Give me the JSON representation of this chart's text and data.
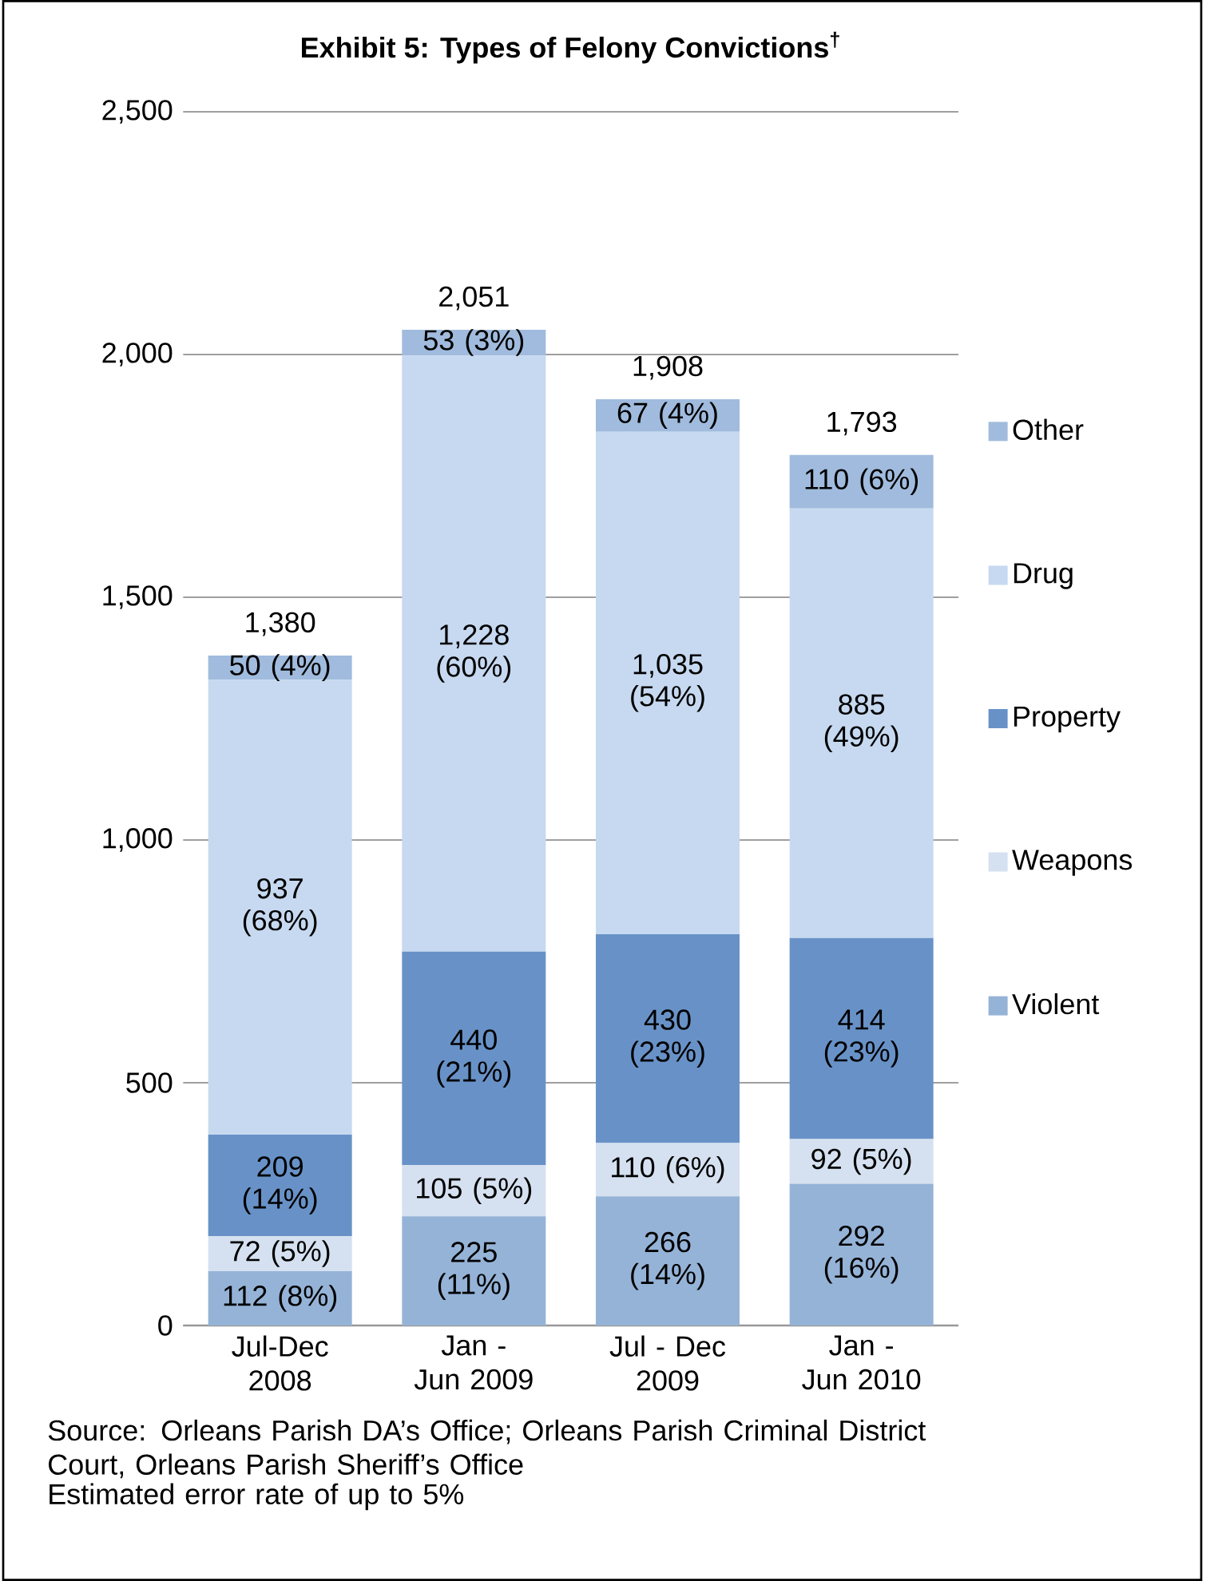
{
  "chart_data": {
    "type": "bar",
    "stacked": true,
    "title": "Exhibit 5: Types of Felony Convictions$^{†}$",
    "categories": [
      "Jul-Dec 2008",
      "Jan - Jun 2009",
      "Jul - Dec 2009",
      "Jan - Jun 2010"
    ],
    "series": [
      {
        "name": "Violent",
        "color": "#95b3d7",
        "values": [
          112,
          225,
          266,
          292
        ],
        "value_labels": [
          "112 (8%)",
          "225 (11%)",
          "266 (14%)",
          "292 (16%)"
        ]
      },
      {
        "name": "Weapons",
        "color": "#d5e1f0",
        "values": [
          72,
          105,
          110,
          92
        ],
        "value_labels": [
          "72 (5%)",
          "105 (5%)",
          "110 (6%)",
          "92 (5%)"
        ]
      },
      {
        "name": "Property",
        "color": "#6892c7",
        "values": [
          209,
          440,
          430,
          414
        ],
        "value_labels": [
          "209 (14%)",
          "440 (21%)",
          "430 (23%)",
          "414 (23%)"
        ]
      },
      {
        "name": "Drug",
        "color": "#c6d9f0",
        "values": [
          937,
          1228,
          1035,
          885
        ],
        "value_labels": [
          "937 (68%)",
          "1,228 (60%)",
          "1,035 (54%)",
          "885 (49%)"
        ]
      },
      {
        "name": "Other",
        "color": "#a0bbdd",
        "values": [
          50,
          53,
          67,
          110
        ],
        "value_labels": [
          "50 (4%)",
          "53 (3%)",
          "67 (4%)",
          "110 (6%)"
        ]
      }
    ],
    "totals": [
      "1,380",
      "2,051",
      "1,908",
      "1,793"
    ],
    "ylim": [
      0,
      2500
    ],
    "yticks": [
      {
        "value": 0,
        "label": "0"
      },
      {
        "value": 500,
        "label": "500"
      },
      {
        "value": 1000,
        "label": "1,000"
      },
      {
        "value": 1500,
        "label": "1,500"
      },
      {
        "value": 2000,
        "label": "2,000"
      },
      {
        "value": 2500,
        "label": "2,500"
      }
    ],
    "grid": "y",
    "legend": "right",
    "annotations": [
      "Source: Orleans Parish DA’s Office; Orleans Parish Criminal District Court, Orleans Parish Sheriff’s Office",
      "Estimated error rate of up to 5%"
    ]
  }
}
